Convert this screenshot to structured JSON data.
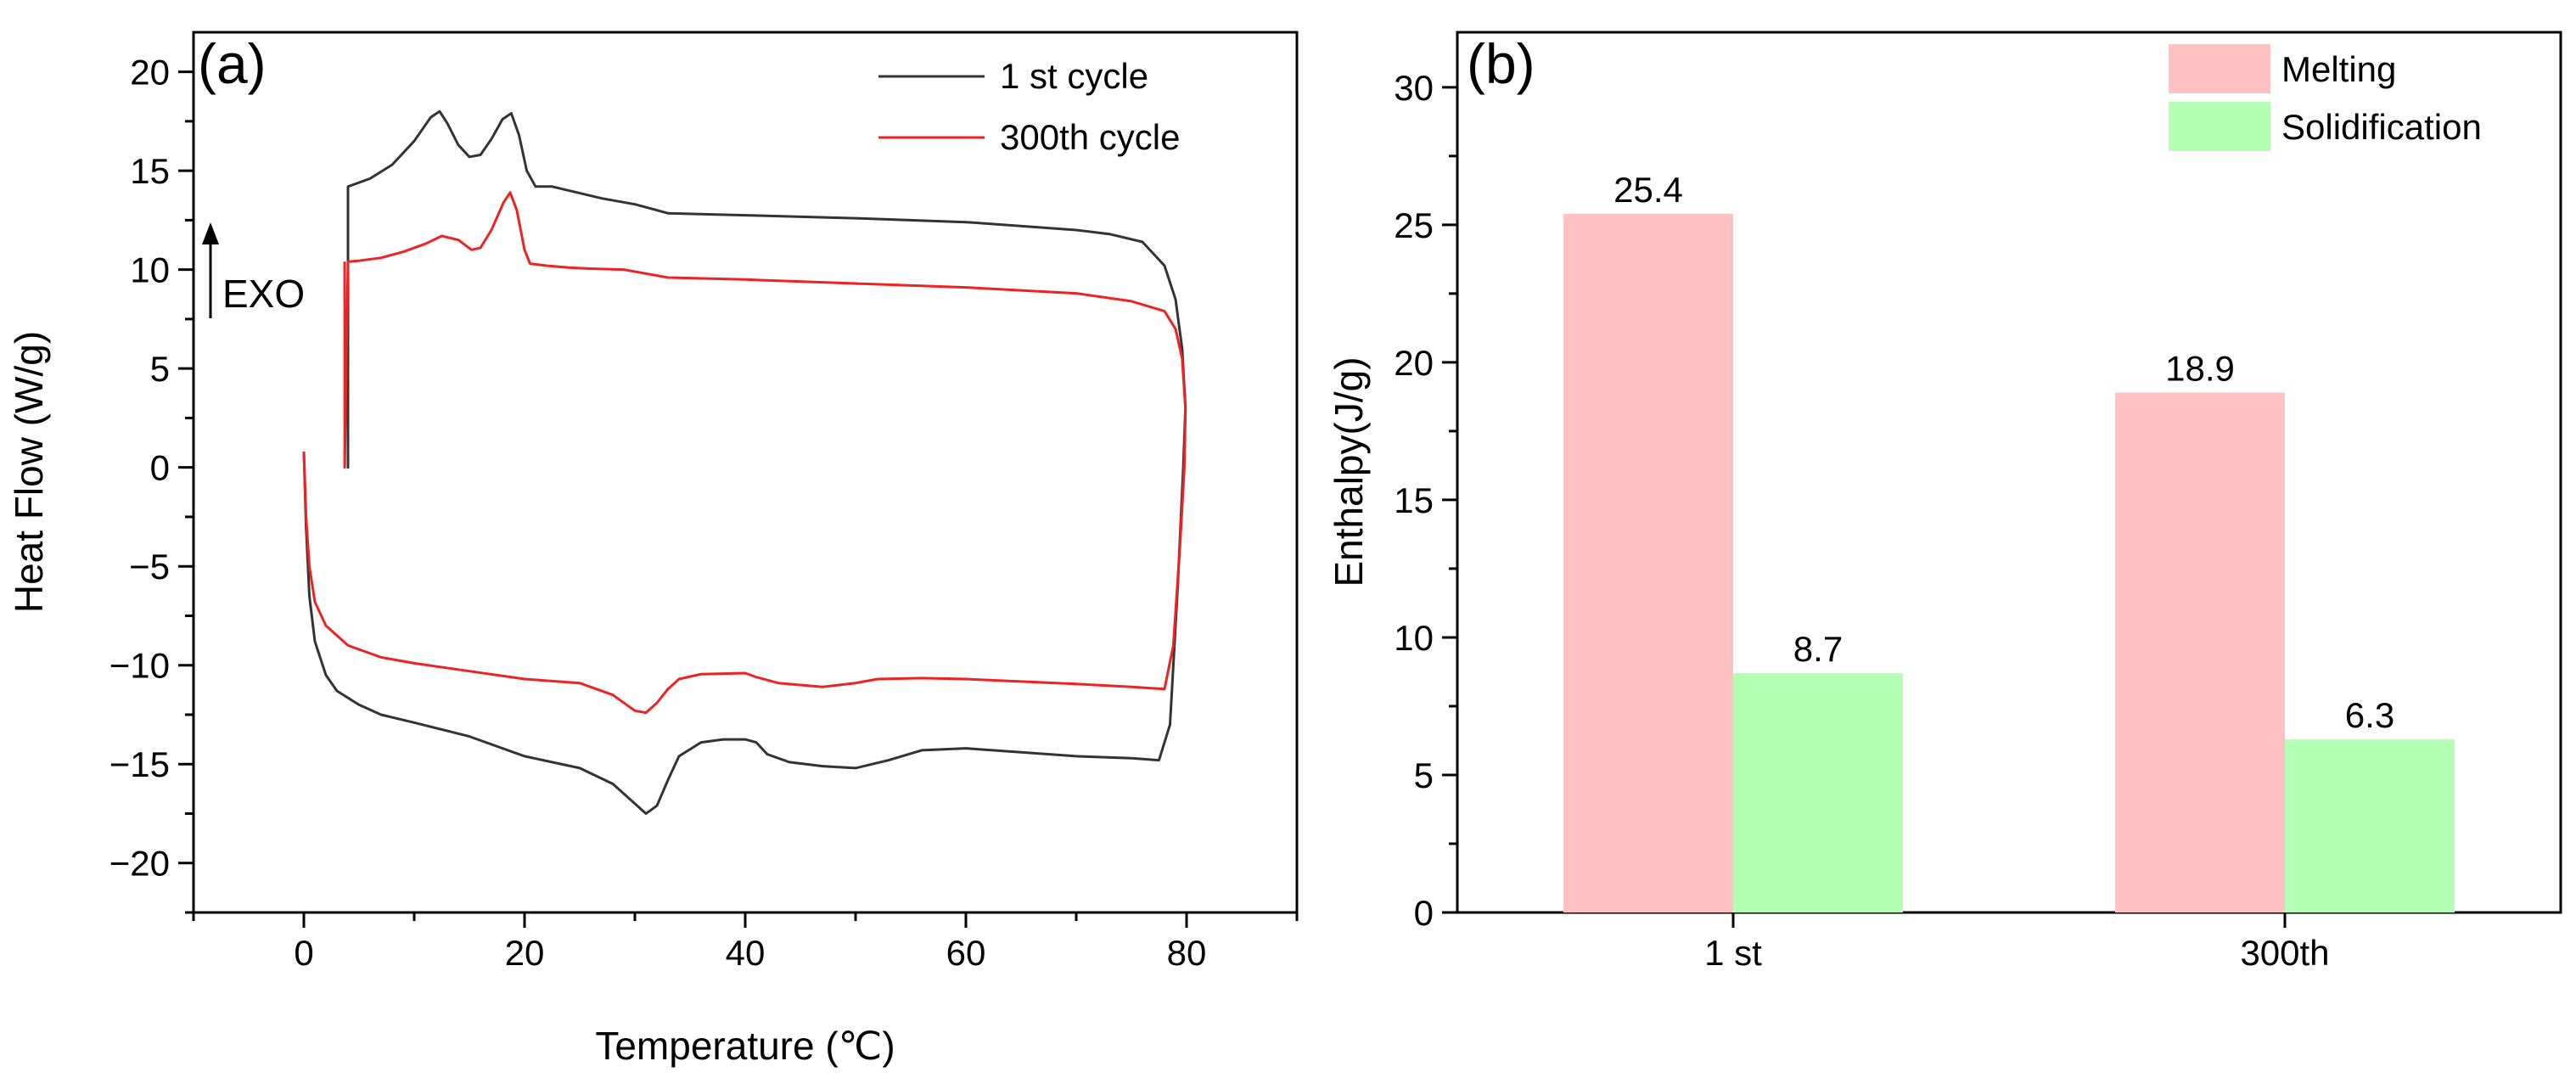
{
  "chart_data": [
    {
      "type": "line",
      "panel_label": "(a)",
      "xlabel": "Temperature (℃)",
      "ylabel": "Heat Flow (W/g)",
      "xlim": [
        -10,
        90
      ],
      "ylim": [
        -22.5,
        22
      ],
      "xticks": [
        0,
        20,
        40,
        60,
        80
      ],
      "yticks": [
        20,
        15,
        10,
        5,
        0,
        -5,
        -10,
        -15,
        -20
      ],
      "annotation": "EXO",
      "legend_position": "top-right",
      "series": [
        {
          "name": "1 st cycle",
          "color": "#333333",
          "points": [
            [
              0,
              0.8
            ],
            [
              0.2,
              -3
            ],
            [
              0.5,
              -6.5
            ],
            [
              1,
              -8.8
            ],
            [
              2,
              -10.5
            ],
            [
              3,
              -11.3
            ],
            [
              5,
              -12
            ],
            [
              7,
              -12.5
            ],
            [
              10,
              -12.9
            ],
            [
              15,
              -13.6
            ],
            [
              20,
              -14.6
            ],
            [
              25,
              -15.2
            ],
            [
              28,
              -16
            ],
            [
              30,
              -17
            ],
            [
              31,
              -17.5
            ],
            [
              32,
              -17.1
            ],
            [
              33,
              -15.8
            ],
            [
              34,
              -14.6
            ],
            [
              36,
              -13.9
            ],
            [
              38,
              -13.75
            ],
            [
              40,
              -13.75
            ],
            [
              41,
              -13.9
            ],
            [
              42,
              -14.5
            ],
            [
              44,
              -14.9
            ],
            [
              47,
              -15.1
            ],
            [
              50,
              -15.2
            ],
            [
              53,
              -14.8
            ],
            [
              56,
              -14.3
            ],
            [
              60,
              -14.2
            ],
            [
              65,
              -14.4
            ],
            [
              70,
              -14.6
            ],
            [
              75,
              -14.7
            ],
            [
              77.5,
              -14.8
            ],
            [
              78.5,
              -13
            ],
            [
              79.2,
              -6
            ],
            [
              79.7,
              0
            ],
            [
              79.9,
              3
            ],
            [
              79.6,
              6
            ],
            [
              79,
              8.5
            ],
            [
              78,
              10.2
            ],
            [
              76,
              11.4
            ],
            [
              73,
              11.8
            ],
            [
              70,
              12
            ],
            [
              60,
              12.4
            ],
            [
              50,
              12.6
            ],
            [
              40,
              12.75
            ],
            [
              33,
              12.85
            ],
            [
              32,
              13
            ],
            [
              30,
              13.3
            ],
            [
              27,
              13.6
            ],
            [
              24,
              14
            ],
            [
              22.5,
              14.2
            ],
            [
              21,
              14.2
            ],
            [
              20.2,
              15
            ],
            [
              19.5,
              16.8
            ],
            [
              18.8,
              17.9
            ],
            [
              18,
              17.6
            ],
            [
              17,
              16.6
            ],
            [
              16,
              15.8
            ],
            [
              15,
              15.7
            ],
            [
              14,
              16.3
            ],
            [
              13,
              17.4
            ],
            [
              12.3,
              18
            ],
            [
              11.5,
              17.7
            ],
            [
              10,
              16.5
            ],
            [
              8,
              15.3
            ],
            [
              6,
              14.6
            ],
            [
              4,
              14.2
            ],
            [
              4,
              0
            ],
            [
              4,
              14.2
            ]
          ]
        },
        {
          "name": "300th cycle",
          "color": "#ee2222",
          "points": [
            [
              0,
              0.8
            ],
            [
              0.2,
              -2.5
            ],
            [
              0.5,
              -5
            ],
            [
              1,
              -6.8
            ],
            [
              2,
              -8
            ],
            [
              4,
              -9
            ],
            [
              7,
              -9.6
            ],
            [
              10,
              -9.9
            ],
            [
              15,
              -10.3
            ],
            [
              20,
              -10.7
            ],
            [
              25,
              -10.9
            ],
            [
              28,
              -11.5
            ],
            [
              30,
              -12.3
            ],
            [
              31,
              -12.4
            ],
            [
              32,
              -11.9
            ],
            [
              33,
              -11.2
            ],
            [
              34,
              -10.7
            ],
            [
              36,
              -10.45
            ],
            [
              40,
              -10.4
            ],
            [
              41,
              -10.6
            ],
            [
              43,
              -10.9
            ],
            [
              47,
              -11.1
            ],
            [
              50,
              -10.9
            ],
            [
              52,
              -10.7
            ],
            [
              56,
              -10.65
            ],
            [
              60,
              -10.7
            ],
            [
              70,
              -10.95
            ],
            [
              75,
              -11.1
            ],
            [
              78,
              -11.2
            ],
            [
              78.8,
              -9
            ],
            [
              79.4,
              -4
            ],
            [
              79.8,
              0
            ],
            [
              79.9,
              3
            ],
            [
              79.6,
              5.5
            ],
            [
              79,
              7
            ],
            [
              78,
              7.9
            ],
            [
              75,
              8.4
            ],
            [
              70,
              8.8
            ],
            [
              60,
              9.1
            ],
            [
              50,
              9.3
            ],
            [
              40,
              9.5
            ],
            [
              33,
              9.6
            ],
            [
              31,
              9.8
            ],
            [
              29,
              10
            ],
            [
              26,
              10.05
            ],
            [
              24,
              10.1
            ],
            [
              22,
              10.2
            ],
            [
              20.5,
              10.3
            ],
            [
              20,
              11
            ],
            [
              19.3,
              13
            ],
            [
              18.7,
              13.9
            ],
            [
              18.1,
              13.4
            ],
            [
              17,
              12
            ],
            [
              16,
              11.1
            ],
            [
              15.2,
              11
            ],
            [
              14,
              11.5
            ],
            [
              12.5,
              11.7
            ],
            [
              11,
              11.3
            ],
            [
              9,
              10.9
            ],
            [
              7,
              10.6
            ],
            [
              5,
              10.45
            ],
            [
              4,
              10.4
            ],
            [
              3.7,
              0
            ],
            [
              3.7,
              10.4
            ]
          ]
        }
      ]
    },
    {
      "type": "bar",
      "panel_label": "(b)",
      "xlabel": "",
      "ylabel": "Enthalpy(J/g)",
      "ylim": [
        0,
        32
      ],
      "yticks": [
        0,
        5,
        10,
        15,
        20,
        25,
        30
      ],
      "categories": [
        "1 st",
        "300th"
      ],
      "legend_position": "top-right",
      "series": [
        {
          "name": "Melting",
          "color": "#ffc1c1",
          "values": [
            25.4,
            18.9
          ],
          "labels": [
            "25.4",
            "18.9"
          ]
        },
        {
          "name": "Solidification",
          "color": "#b3ffb3",
          "values": [
            8.7,
            6.3
          ],
          "labels": [
            "8.7",
            "6.3"
          ]
        }
      ]
    }
  ]
}
